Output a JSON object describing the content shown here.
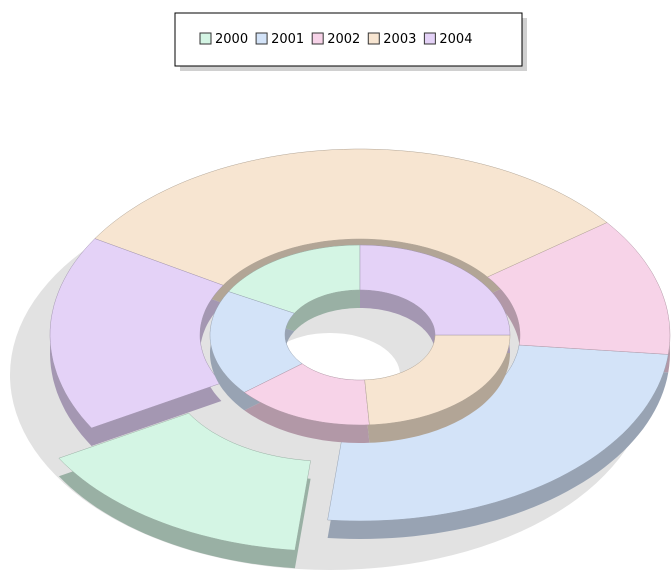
{
  "chart_data": {
    "type": "doughnut",
    "categories": [
      "2000",
      "2001",
      "2002",
      "2003",
      "2004"
    ],
    "colors": [
      "#d4f5e4",
      "#d3e3f8",
      "#f7d3e8",
      "#f7e5d1",
      "#e4d2f7"
    ],
    "series": [
      {
        "values": [
          15,
          25,
          12,
          31,
          17
        ]
      },
      {
        "values": [
          17,
          19,
          15,
          24,
          25
        ]
      }
    ],
    "legend": "top"
  }
}
